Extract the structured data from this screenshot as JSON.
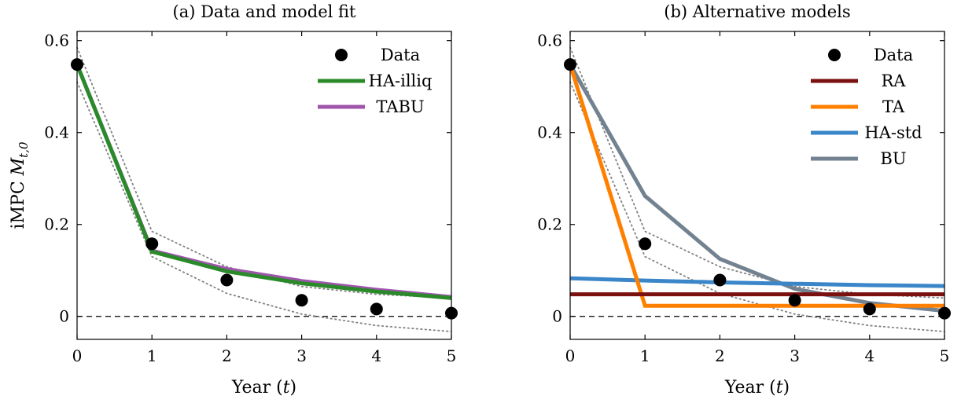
{
  "chart_data": [
    {
      "type": "line",
      "title": "(a) Data and model fit",
      "xlabel": "Year (t)",
      "ylabel": "iMPC M_{t,0}",
      "xlim": [
        0,
        5
      ],
      "ylim": [
        -0.05,
        0.62
      ],
      "xticks": [
        "0",
        "1",
        "2",
        "3",
        "4",
        "5"
      ],
      "yticks": [
        "0",
        "0.2",
        "0.4",
        "0.6"
      ],
      "legend_position": "top-right",
      "zero_line": true,
      "data": {
        "name": "Data",
        "x": [
          0,
          1,
          2,
          3,
          4,
          5
        ],
        "y": [
          0.548,
          0.158,
          0.079,
          0.035,
          0.016,
          0.007
        ],
        "color": "#000000"
      },
      "confidence_band": {
        "x": [
          0,
          1,
          2,
          3,
          4,
          5
        ],
        "upper": [
          0.585,
          0.185,
          0.108,
          0.065,
          0.048,
          0.04
        ],
        "lower": [
          0.51,
          0.13,
          0.05,
          0.005,
          -0.02,
          -0.033
        ],
        "color": "#808080"
      },
      "series": [
        {
          "name": "HA-illiq",
          "x": [
            0,
            1,
            2,
            3,
            4,
            5
          ],
          "values": [
            0.548,
            0.141,
            0.098,
            0.072,
            0.054,
            0.04
          ],
          "color": "#2a8a2a"
        },
        {
          "name": "TABU",
          "x": [
            0,
            1,
            2,
            3,
            4,
            5
          ],
          "values": [
            0.548,
            0.143,
            0.103,
            0.077,
            0.058,
            0.042
          ],
          "color": "#a055ad"
        }
      ]
    },
    {
      "type": "line",
      "title": "(b) Alternative models",
      "xlabel": "Year (t)",
      "ylabel": "",
      "xlim": [
        0,
        5
      ],
      "ylim": [
        -0.05,
        0.62
      ],
      "xticks": [
        "0",
        "1",
        "2",
        "3",
        "4",
        "5"
      ],
      "yticks": [
        "0",
        "0.2",
        "0.4",
        "0.6"
      ],
      "legend_position": "top-right",
      "zero_line": true,
      "data": {
        "name": "Data",
        "x": [
          0,
          1,
          2,
          3,
          4,
          5
        ],
        "y": [
          0.548,
          0.158,
          0.079,
          0.035,
          0.016,
          0.007
        ],
        "color": "#000000"
      },
      "confidence_band": {
        "x": [
          0,
          1,
          2,
          3,
          4,
          5
        ],
        "upper": [
          0.585,
          0.185,
          0.108,
          0.065,
          0.048,
          0.04
        ],
        "lower": [
          0.51,
          0.13,
          0.05,
          0.005,
          -0.02,
          -0.033
        ],
        "color": "#808080"
      },
      "series": [
        {
          "name": "RA",
          "x": [
            0,
            1,
            2,
            3,
            4,
            5
          ],
          "values": [
            0.048,
            0.048,
            0.048,
            0.048,
            0.048,
            0.048
          ],
          "color": "#7a1010"
        },
        {
          "name": "TA",
          "x": [
            0,
            1,
            2,
            3,
            4,
            5
          ],
          "values": [
            0.548,
            0.023,
            0.023,
            0.023,
            0.023,
            0.023
          ],
          "color": "#ff8000"
        },
        {
          "name": "HA-std",
          "x": [
            0,
            1,
            2,
            3,
            4,
            5
          ],
          "values": [
            0.083,
            0.078,
            0.074,
            0.071,
            0.068,
            0.066
          ],
          "color": "#3a86c8"
        },
        {
          "name": "BU",
          "x": [
            0,
            1,
            2,
            3,
            4,
            5
          ],
          "values": [
            0.548,
            0.262,
            0.125,
            0.06,
            0.029,
            0.012
          ],
          "color": "#738290"
        }
      ]
    }
  ]
}
